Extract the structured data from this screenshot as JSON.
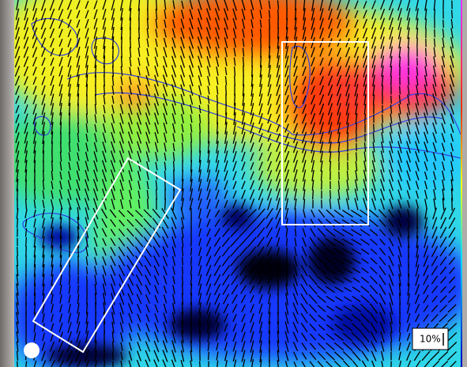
{
  "legend": {
    "label": "10%"
  }
}
